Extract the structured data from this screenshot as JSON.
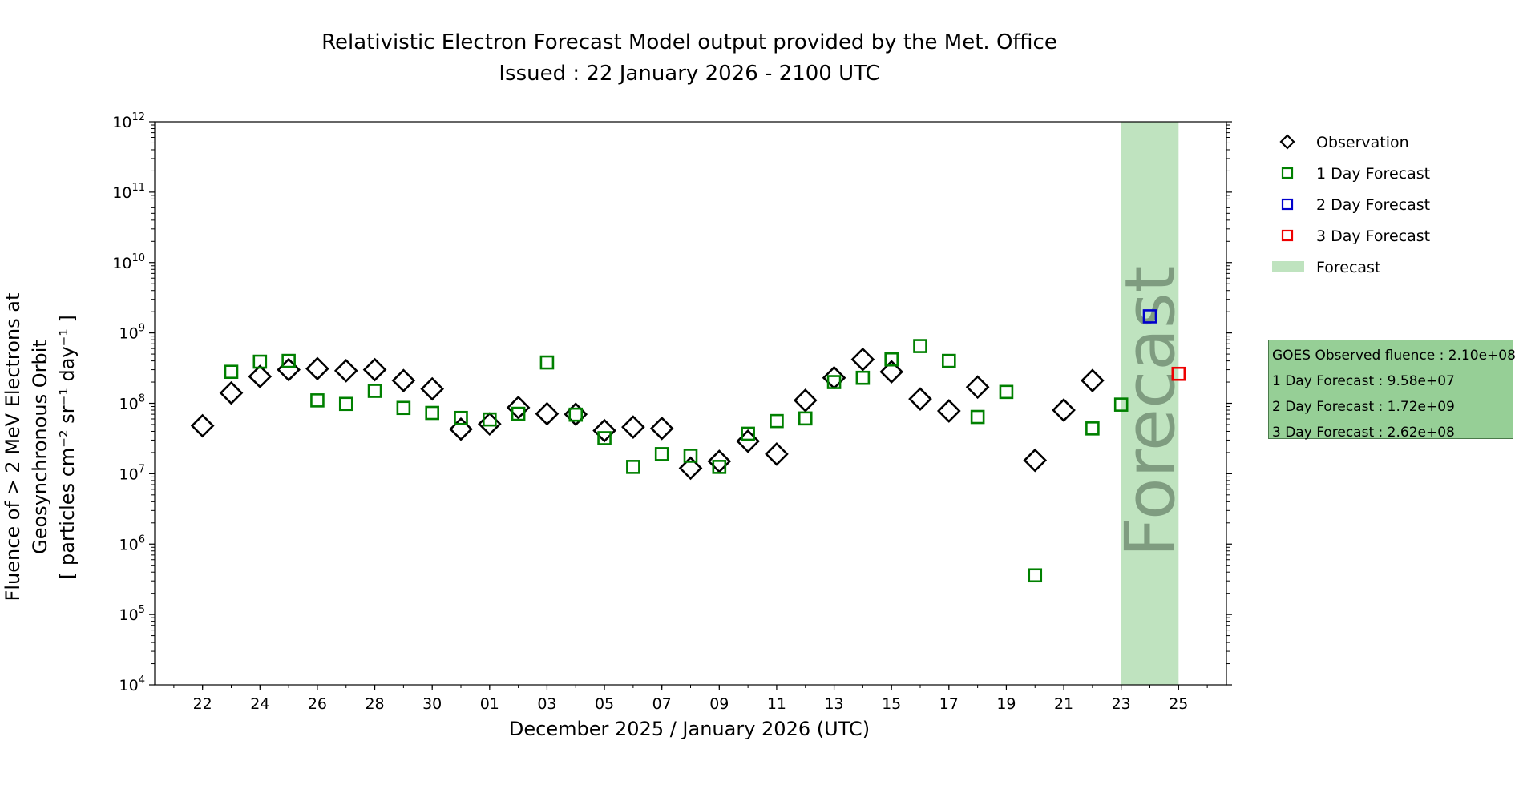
{
  "title": "Relativistic Electron Forecast Model output provided by the Met. Office",
  "subtitle": "Issued : 22 January 2026 - 2100 UTC",
  "forecast_watermark": "Forecast",
  "info_box": {
    "lines": [
      "GOES Observed fluence : 2.10e+08",
      "1 Day Forecast : 9.58e+07",
      "2 Day Forecast : 1.72e+09",
      "3 Day Forecast : 2.62e+08"
    ],
    "background": "#96cf96"
  },
  "chart_data": {
    "type": "scatter",
    "title": "Relativistic Electron Forecast Model output provided by the Met. Office",
    "subtitle": "Issued : 22 January 2026 - 2100 UTC",
    "xlabel": "December 2025 / January 2026 (UTC)",
    "ylabel_line1": "Fluence of > 2 MeV Electrons at Geosynchronous Orbit",
    "ylabel_line2": "[ particles cm⁻² sr⁻¹ day⁻¹ ]",
    "y_scale": "log",
    "ylim": [
      10000,
      1000000000000
    ],
    "xlim": [
      "2025-12-20T08:00",
      "2026-01-26T16:00"
    ],
    "x_ticks": [
      {
        "date": "2025-12-22",
        "label": "22"
      },
      {
        "date": "2025-12-24",
        "label": "24"
      },
      {
        "date": "2025-12-26",
        "label": "26"
      },
      {
        "date": "2025-12-28",
        "label": "28"
      },
      {
        "date": "2025-12-30",
        "label": "30"
      },
      {
        "date": "2026-01-01",
        "label": "01"
      },
      {
        "date": "2026-01-03",
        "label": "03"
      },
      {
        "date": "2026-01-05",
        "label": "05"
      },
      {
        "date": "2026-01-07",
        "label": "07"
      },
      {
        "date": "2026-01-09",
        "label": "09"
      },
      {
        "date": "2026-01-11",
        "label": "11"
      },
      {
        "date": "2026-01-13",
        "label": "13"
      },
      {
        "date": "2026-01-15",
        "label": "15"
      },
      {
        "date": "2026-01-17",
        "label": "17"
      },
      {
        "date": "2026-01-19",
        "label": "19"
      },
      {
        "date": "2026-01-21",
        "label": "21"
      },
      {
        "date": "2026-01-23",
        "label": "23"
      },
      {
        "date": "2026-01-25",
        "label": "25"
      }
    ],
    "y_ticks": [
      {
        "value": 10000,
        "base": "10",
        "exp": "4"
      },
      {
        "value": 100000,
        "base": "10",
        "exp": "5"
      },
      {
        "value": 1000000,
        "base": "10",
        "exp": "6"
      },
      {
        "value": 10000000,
        "base": "10",
        "exp": "7"
      },
      {
        "value": 100000000,
        "base": "10",
        "exp": "8"
      },
      {
        "value": 1000000000,
        "base": "10",
        "exp": "9"
      },
      {
        "value": 10000000000,
        "base": "10",
        "exp": "10"
      },
      {
        "value": 100000000000,
        "base": "10",
        "exp": "11"
      },
      {
        "value": 1000000000000,
        "base": "10",
        "exp": "12"
      }
    ],
    "forecast_span": {
      "start": "2026-01-23T00:00",
      "end": "2026-01-25T00:00",
      "color": "#bfe3bf"
    },
    "legend_position": "outside-right",
    "legend": [
      {
        "label": "Observation",
        "marker": "diamond",
        "color": "#000000"
      },
      {
        "label": "1 Day Forecast",
        "marker": "square",
        "color": "#008000"
      },
      {
        "label": "2 Day Forecast",
        "marker": "square",
        "color": "#0000cc"
      },
      {
        "label": "3 Day Forecast",
        "marker": "square",
        "color": "#ee0000"
      },
      {
        "label": "Forecast",
        "marker": "band",
        "color": "#bfe3bf"
      }
    ],
    "series": [
      {
        "name": "Observation",
        "marker": "diamond",
        "color": "#000000",
        "points": [
          {
            "x": "2025-12-22T00:00",
            "y": 48000000
          },
          {
            "x": "2025-12-23T00:00",
            "y": 140000000
          },
          {
            "x": "2025-12-24T00:00",
            "y": 240000000
          },
          {
            "x": "2025-12-25T00:00",
            "y": 300000000
          },
          {
            "x": "2025-12-26T00:00",
            "y": 310000000
          },
          {
            "x": "2025-12-27T00:00",
            "y": 290000000
          },
          {
            "x": "2025-12-28T00:00",
            "y": 300000000
          },
          {
            "x": "2025-12-29T00:00",
            "y": 210000000
          },
          {
            "x": "2025-12-30T00:00",
            "y": 160000000
          },
          {
            "x": "2025-12-31T00:00",
            "y": 43000000
          },
          {
            "x": "2026-01-01T00:00",
            "y": 51000000
          },
          {
            "x": "2026-01-02T00:00",
            "y": 87000000
          },
          {
            "x": "2026-01-03T00:00",
            "y": 71000000
          },
          {
            "x": "2026-01-04T00:00",
            "y": 70000000
          },
          {
            "x": "2026-01-05T00:00",
            "y": 41000000
          },
          {
            "x": "2026-01-06T00:00",
            "y": 46000000
          },
          {
            "x": "2026-01-07T00:00",
            "y": 44000000
          },
          {
            "x": "2026-01-08T00:00",
            "y": 12000000
          },
          {
            "x": "2026-01-09T00:00",
            "y": 15000000
          },
          {
            "x": "2026-01-10T00:00",
            "y": 29000000
          },
          {
            "x": "2026-01-11T00:00",
            "y": 19000000
          },
          {
            "x": "2026-01-12T00:00",
            "y": 110000000
          },
          {
            "x": "2026-01-13T00:00",
            "y": 230000000
          },
          {
            "x": "2026-01-14T00:00",
            "y": 420000000
          },
          {
            "x": "2026-01-15T00:00",
            "y": 280000000
          },
          {
            "x": "2026-01-16T00:00",
            "y": 115000000
          },
          {
            "x": "2026-01-17T00:00",
            "y": 78000000
          },
          {
            "x": "2026-01-18T00:00",
            "y": 170000000
          },
          {
            "x": "2026-01-20T00:00",
            "y": 15500000
          },
          {
            "x": "2026-01-21T00:00",
            "y": 80000000
          },
          {
            "x": "2026-01-22T00:00",
            "y": 210000000
          }
        ]
      },
      {
        "name": "1 Day Forecast",
        "marker": "square",
        "color": "#008000",
        "points": [
          {
            "x": "2025-12-23T00:00",
            "y": 280000000
          },
          {
            "x": "2025-12-24T00:00",
            "y": 390000000
          },
          {
            "x": "2025-12-25T00:00",
            "y": 400000000
          },
          {
            "x": "2025-12-26T00:00",
            "y": 110000000
          },
          {
            "x": "2025-12-27T00:00",
            "y": 98000000
          },
          {
            "x": "2025-12-28T00:00",
            "y": 150000000
          },
          {
            "x": "2025-12-29T00:00",
            "y": 86000000
          },
          {
            "x": "2025-12-30T00:00",
            "y": 73000000
          },
          {
            "x": "2025-12-31T00:00",
            "y": 62000000
          },
          {
            "x": "2026-01-01T00:00",
            "y": 59000000
          },
          {
            "x": "2026-01-02T00:00",
            "y": 71000000
          },
          {
            "x": "2026-01-03T00:00",
            "y": 380000000
          },
          {
            "x": "2026-01-04T00:00",
            "y": 69000000
          },
          {
            "x": "2026-01-05T00:00",
            "y": 32000000
          },
          {
            "x": "2026-01-06T00:00",
            "y": 12500000
          },
          {
            "x": "2026-01-07T00:00",
            "y": 19000000
          },
          {
            "x": "2026-01-08T00:00",
            "y": 18000000
          },
          {
            "x": "2026-01-09T00:00",
            "y": 12500000
          },
          {
            "x": "2026-01-10T00:00",
            "y": 37000000
          },
          {
            "x": "2026-01-11T00:00",
            "y": 56000000
          },
          {
            "x": "2026-01-12T00:00",
            "y": 61000000
          },
          {
            "x": "2026-01-13T00:00",
            "y": 200000000
          },
          {
            "x": "2026-01-14T00:00",
            "y": 230000000
          },
          {
            "x": "2026-01-15T00:00",
            "y": 420000000
          },
          {
            "x": "2026-01-16T00:00",
            "y": 650000000
          },
          {
            "x": "2026-01-17T00:00",
            "y": 400000000
          },
          {
            "x": "2026-01-18T00:00",
            "y": 64000000
          },
          {
            "x": "2026-01-19T00:00",
            "y": 145000000
          },
          {
            "x": "2026-01-20T00:00",
            "y": 360000
          },
          {
            "x": "2026-01-22T00:00",
            "y": 44000000
          },
          {
            "x": "2026-01-23T00:00",
            "y": 95800000
          }
        ]
      },
      {
        "name": "2 Day Forecast",
        "marker": "square",
        "color": "#0000cc",
        "points": [
          {
            "x": "2026-01-24T00:00",
            "y": 1720000000
          }
        ]
      },
      {
        "name": "3 Day Forecast",
        "marker": "square",
        "color": "#ee0000",
        "points": [
          {
            "x": "2026-01-25T00:00",
            "y": 262000000
          }
        ]
      }
    ]
  }
}
